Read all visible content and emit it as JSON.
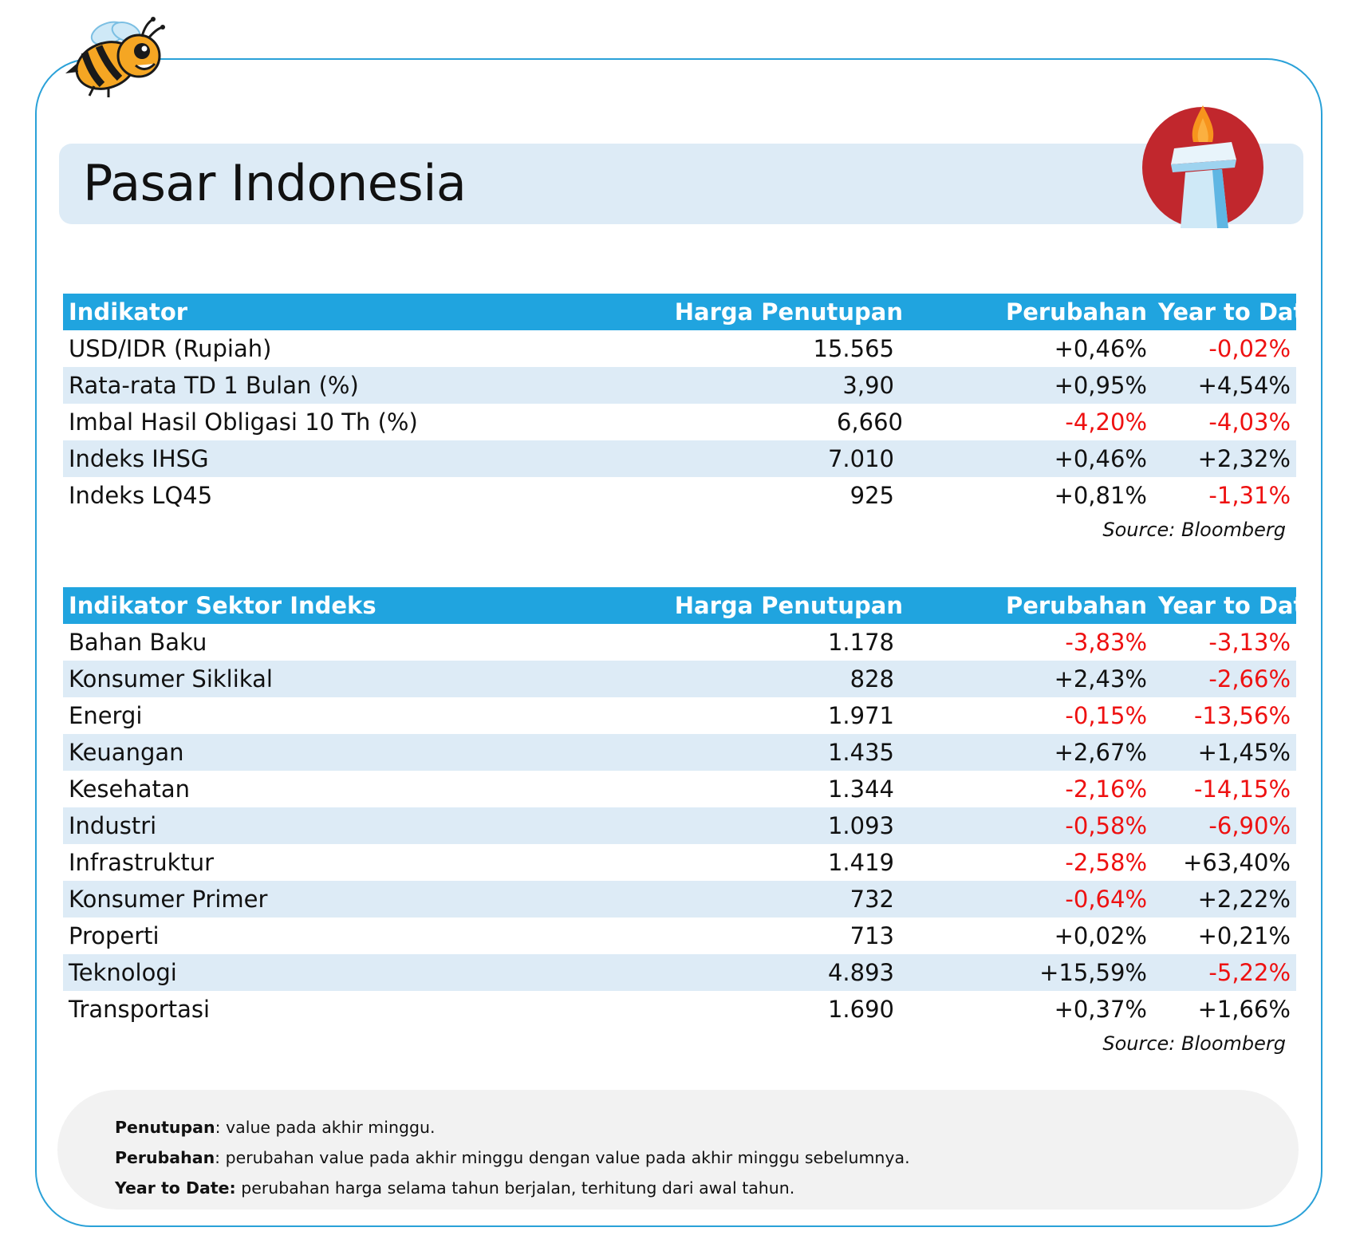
{
  "page": {
    "title": "Pasar Indonesia",
    "colors": {
      "accent": "#20a4df",
      "band": "#ddebf6",
      "negative": "#ee1111",
      "border": "#2aa1d8"
    },
    "icons": [
      "bee-mascot-icon",
      "monas-monument-icon"
    ]
  },
  "table1": {
    "headers": [
      "Indikator",
      "Harga Penutupan",
      "Perubahan",
      "Year to Date"
    ],
    "rows": [
      [
        "USD/IDR (Rupiah)",
        "15.565",
        "+0,46%",
        "-0,02%"
      ],
      [
        "Rata-rata TD 1 Bulan (%)",
        "3,90",
        "+0,95%",
        "+4,54%"
      ],
      [
        "Imbal Hasil Obligasi 10 Th (%)",
        "6,660",
        "-4,20%",
        "-4,03%"
      ],
      [
        "Indeks IHSG",
        "7.010",
        "+0,46%",
        "+2,32%"
      ],
      [
        "Indeks LQ45",
        "925",
        "+0,81%",
        "-1,31%"
      ]
    ],
    "source": "Source: Bloomberg"
  },
  "table2": {
    "headers": [
      "Indikator Sektor Indeks",
      "Harga Penutupan",
      "Perubahan",
      "Year to Date"
    ],
    "rows": [
      [
        "Bahan Baku",
        "1.178",
        "-3,83%",
        "-3,13%"
      ],
      [
        "Konsumer Siklikal",
        "828",
        "+2,43%",
        "-2,66%"
      ],
      [
        "Energi",
        "1.971",
        "-0,15%",
        "-13,56%"
      ],
      [
        "Keuangan",
        "1.435",
        "+2,67%",
        "+1,45%"
      ],
      [
        "Kesehatan",
        "1.344",
        "-2,16%",
        "-14,15%"
      ],
      [
        "Industri",
        "1.093",
        "-0,58%",
        "-6,90%"
      ],
      [
        "Infrastruktur",
        "1.419",
        "-2,58%",
        "+63,40%"
      ],
      [
        "Konsumer Primer",
        "732",
        "-0,64%",
        "+2,22%"
      ],
      [
        "Properti",
        "713",
        "+0,02%",
        "+0,21%"
      ],
      [
        "Teknologi",
        "4.893",
        "+15,59%",
        "-5,22%"
      ],
      [
        "Transportasi",
        "1.690",
        "+0,37%",
        "+1,66%"
      ]
    ],
    "source": "Source: Bloomberg"
  },
  "notes": [
    {
      "term": "Penutupan",
      "text": ": value pada akhir minggu."
    },
    {
      "term": "Perubahan",
      "text": ": perubahan value pada akhir minggu dengan value pada akhir minggu sebelumnya."
    },
    {
      "term": "Year to Date:",
      "text": " perubahan harga selama tahun berjalan, terhitung dari awal tahun."
    }
  ]
}
